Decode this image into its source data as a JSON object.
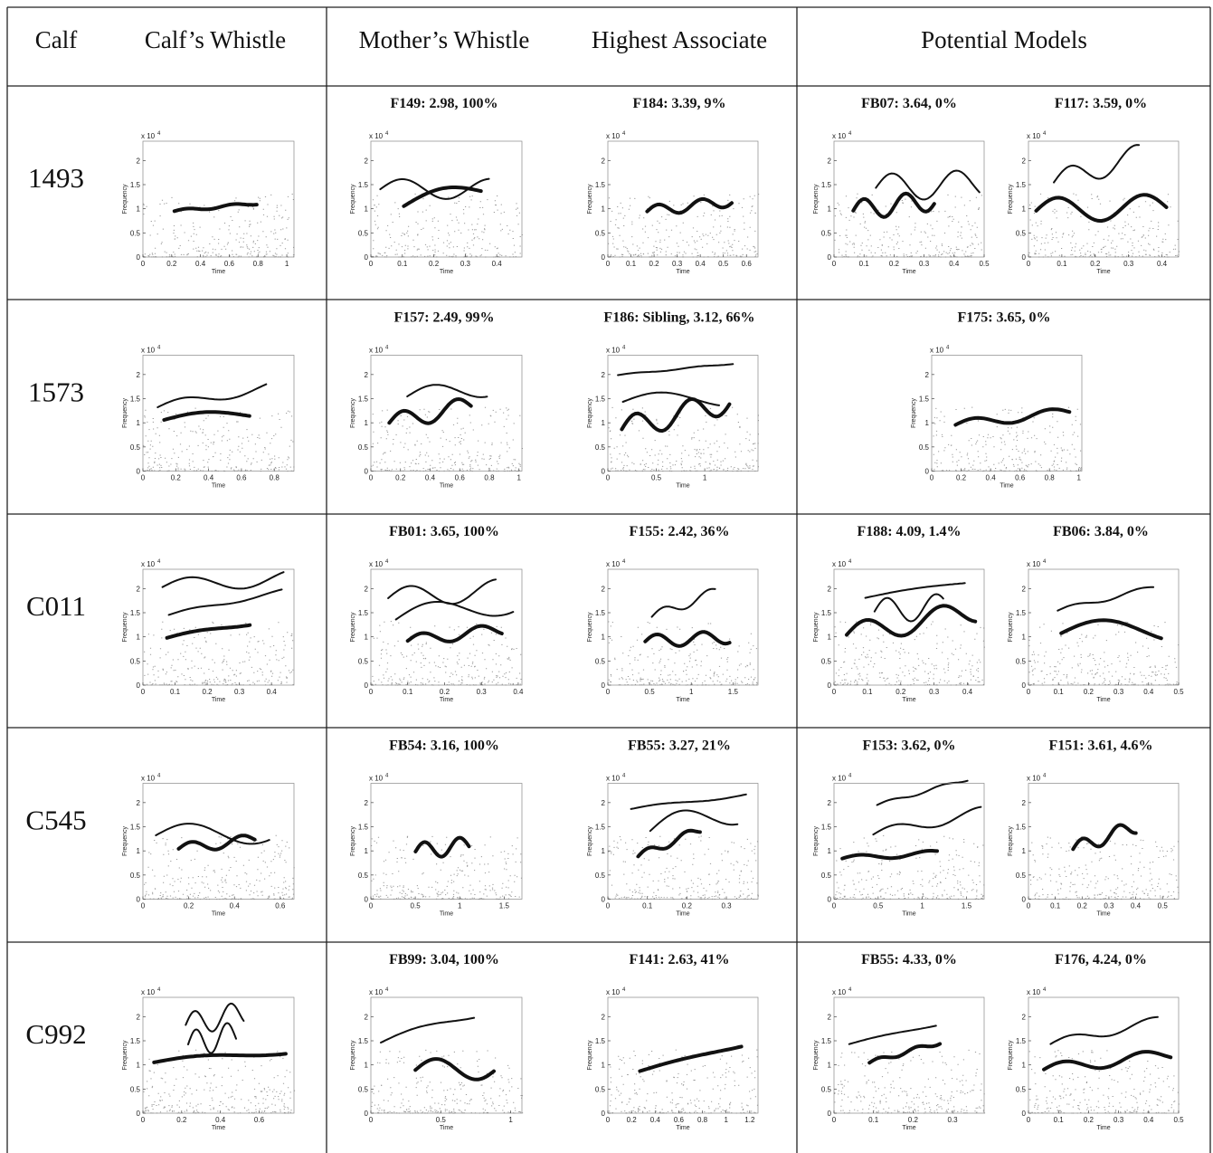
{
  "header": {
    "columns": [
      "Calf",
      "Calf’s Whistle",
      "Mother’s Whistle",
      "Highest Associate",
      "Potential Models"
    ]
  },
  "axes": {
    "ylabel": "Frequency",
    "xlabel": "Time",
    "yscale": "x 10",
    "yscale_exp": "4",
    "ylim": [
      0,
      2.4
    ],
    "yticks": [
      0,
      0.5,
      1,
      1.5,
      2
    ]
  },
  "rows": [
    {
      "calf": "1493",
      "calf_whistle": {
        "xlim": [
          0,
          1.05
        ],
        "xticks": [
          0,
          0.2,
          0.4,
          0.6,
          0.8,
          1
        ]
      },
      "mother": {
        "caption": "F149: 2.98, 100%",
        "xlim": [
          0,
          0.48
        ],
        "xticks": [
          0,
          0.1,
          0.2,
          0.3,
          0.4
        ]
      },
      "associate": {
        "caption": "F184: 3.39, 9%",
        "xlim": [
          0,
          0.65
        ],
        "xticks": [
          0,
          0.1,
          0.2,
          0.3,
          0.4,
          0.5,
          0.6
        ]
      },
      "models": [
        {
          "caption": "FB07: 3.64, 0%",
          "xlim": [
            0,
            0.5
          ],
          "xticks": [
            0,
            0.1,
            0.2,
            0.3,
            0.4,
            0.5
          ]
        },
        {
          "caption": "F117: 3.59, 0%",
          "xlim": [
            0,
            0.45
          ],
          "xticks": [
            0,
            0.1,
            0.2,
            0.3,
            0.4
          ]
        }
      ]
    },
    {
      "calf": "1573",
      "calf_whistle": {
        "xlim": [
          0,
          0.92
        ],
        "xticks": [
          0,
          0.2,
          0.4,
          0.6,
          0.8
        ]
      },
      "mother": {
        "caption": "F157: 2.49, 99%",
        "xlim": [
          0,
          1.02
        ],
        "xticks": [
          0,
          0.2,
          0.4,
          0.6,
          0.8,
          1
        ]
      },
      "associate": {
        "caption": "F186: Sibling, 3.12, 66%",
        "xlim": [
          0,
          1.55
        ],
        "xticks": [
          0,
          0.5,
          1
        ]
      },
      "models": [
        {
          "caption": "F175: 3.65, 0%",
          "xlim": [
            0,
            1.02
          ],
          "xticks": [
            0,
            0.2,
            0.4,
            0.6,
            0.8,
            1
          ]
        }
      ]
    },
    {
      "calf": "C011",
      "calf_whistle": {
        "xlim": [
          0,
          0.47
        ],
        "xticks": [
          0,
          0.1,
          0.2,
          0.3,
          0.4
        ]
      },
      "mother": {
        "caption": "FB01: 3.65, 100%",
        "xlim": [
          0,
          0.41
        ],
        "xticks": [
          0,
          0.1,
          0.2,
          0.3,
          0.4
        ]
      },
      "associate": {
        "caption": "F155: 2.42, 36%",
        "xlim": [
          0,
          1.8
        ],
        "xticks": [
          0,
          0.5,
          1,
          1.5
        ]
      },
      "models": [
        {
          "caption": "F188: 4.09, 1.4%",
          "xlim": [
            0,
            0.45
          ],
          "xticks": [
            0,
            0.1,
            0.2,
            0.3,
            0.4
          ]
        },
        {
          "caption": "FB06: 3.84, 0%",
          "xlim": [
            0,
            0.5
          ],
          "xticks": [
            0,
            0.1,
            0.2,
            0.3,
            0.4,
            0.5
          ]
        }
      ]
    },
    {
      "calf": "C545",
      "calf_whistle": {
        "xlim": [
          0,
          0.66
        ],
        "xticks": [
          0,
          0.2,
          0.4,
          0.6
        ]
      },
      "mother": {
        "caption": "FB54: 3.16, 100%",
        "xlim": [
          0,
          1.7
        ],
        "xticks": [
          0,
          0.5,
          1,
          1.5
        ]
      },
      "associate": {
        "caption": "FB55: 3.27, 21%",
        "xlim": [
          0,
          0.38
        ],
        "xticks": [
          0,
          0.1,
          0.2,
          0.3
        ]
      },
      "models": [
        {
          "caption": "F153: 3.62, 0%",
          "xlim": [
            0,
            1.7
          ],
          "xticks": [
            0,
            0.5,
            1,
            1.5
          ]
        },
        {
          "caption": "F151: 3.61, 4.6%",
          "xlim": [
            0,
            0.56
          ],
          "xticks": [
            0,
            0.1,
            0.2,
            0.3,
            0.4,
            0.5
          ]
        }
      ]
    },
    {
      "calf": "C992",
      "calf_whistle": {
        "xlim": [
          0,
          0.78
        ],
        "xticks": [
          0,
          0.2,
          0.4,
          0.6
        ]
      },
      "mother": {
        "caption": "FB99: 3.04, 100%",
        "xlim": [
          0,
          1.08
        ],
        "xticks": [
          0,
          0.5,
          1
        ]
      },
      "associate": {
        "caption": "F141: 2.63, 41%",
        "xlim": [
          0,
          1.27
        ],
        "xticks": [
          0,
          0.2,
          0.4,
          0.6,
          0.8,
          1,
          1.2
        ]
      },
      "models": [
        {
          "caption": "FB55: 4.33, 0%",
          "xlim": [
            0,
            0.38
          ],
          "xticks": [
            0,
            0.1,
            0.2,
            0.3
          ]
        },
        {
          "caption": "F176, 4.24, 0%",
          "xlim": [
            0,
            0.5
          ],
          "xticks": [
            0,
            0.1,
            0.2,
            0.3,
            0.4,
            0.5
          ]
        }
      ]
    }
  ]
}
